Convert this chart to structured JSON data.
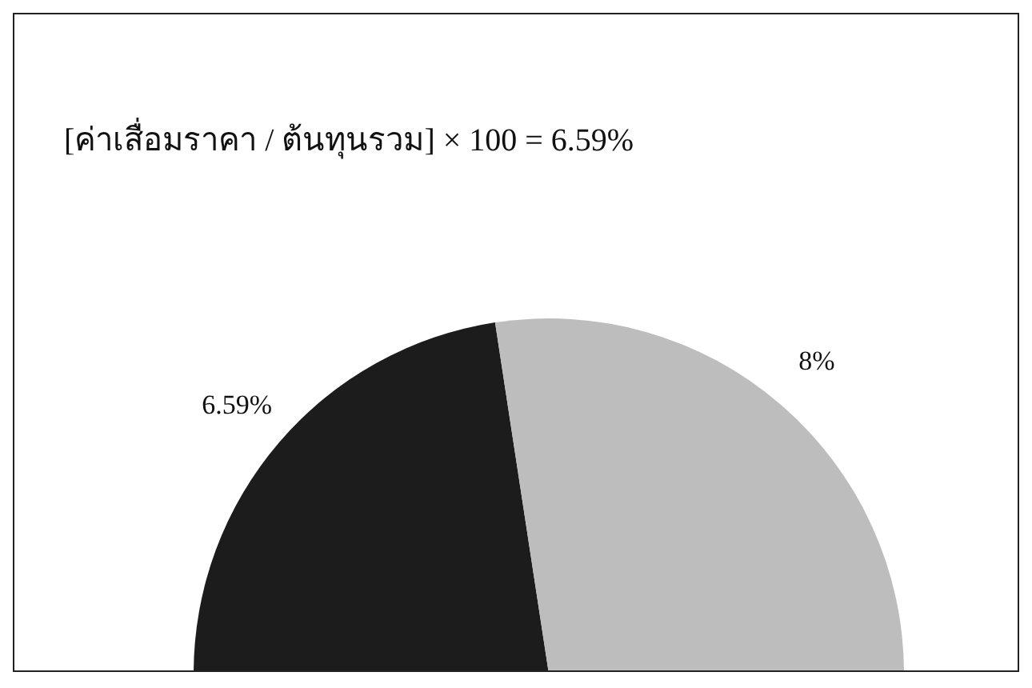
{
  "chart_data": {
    "type": "pie",
    "title": "[ค่าเสื่อมราคา / ต้นทุนรวม] × 100 = 6.59%",
    "categories": [
      null,
      null
    ],
    "values": [
      6.59,
      8
    ],
    "value_labels": [
      "6.59%",
      "8%"
    ],
    "colors": [
      "#1c1c1c",
      "#bdbdbd"
    ]
  }
}
